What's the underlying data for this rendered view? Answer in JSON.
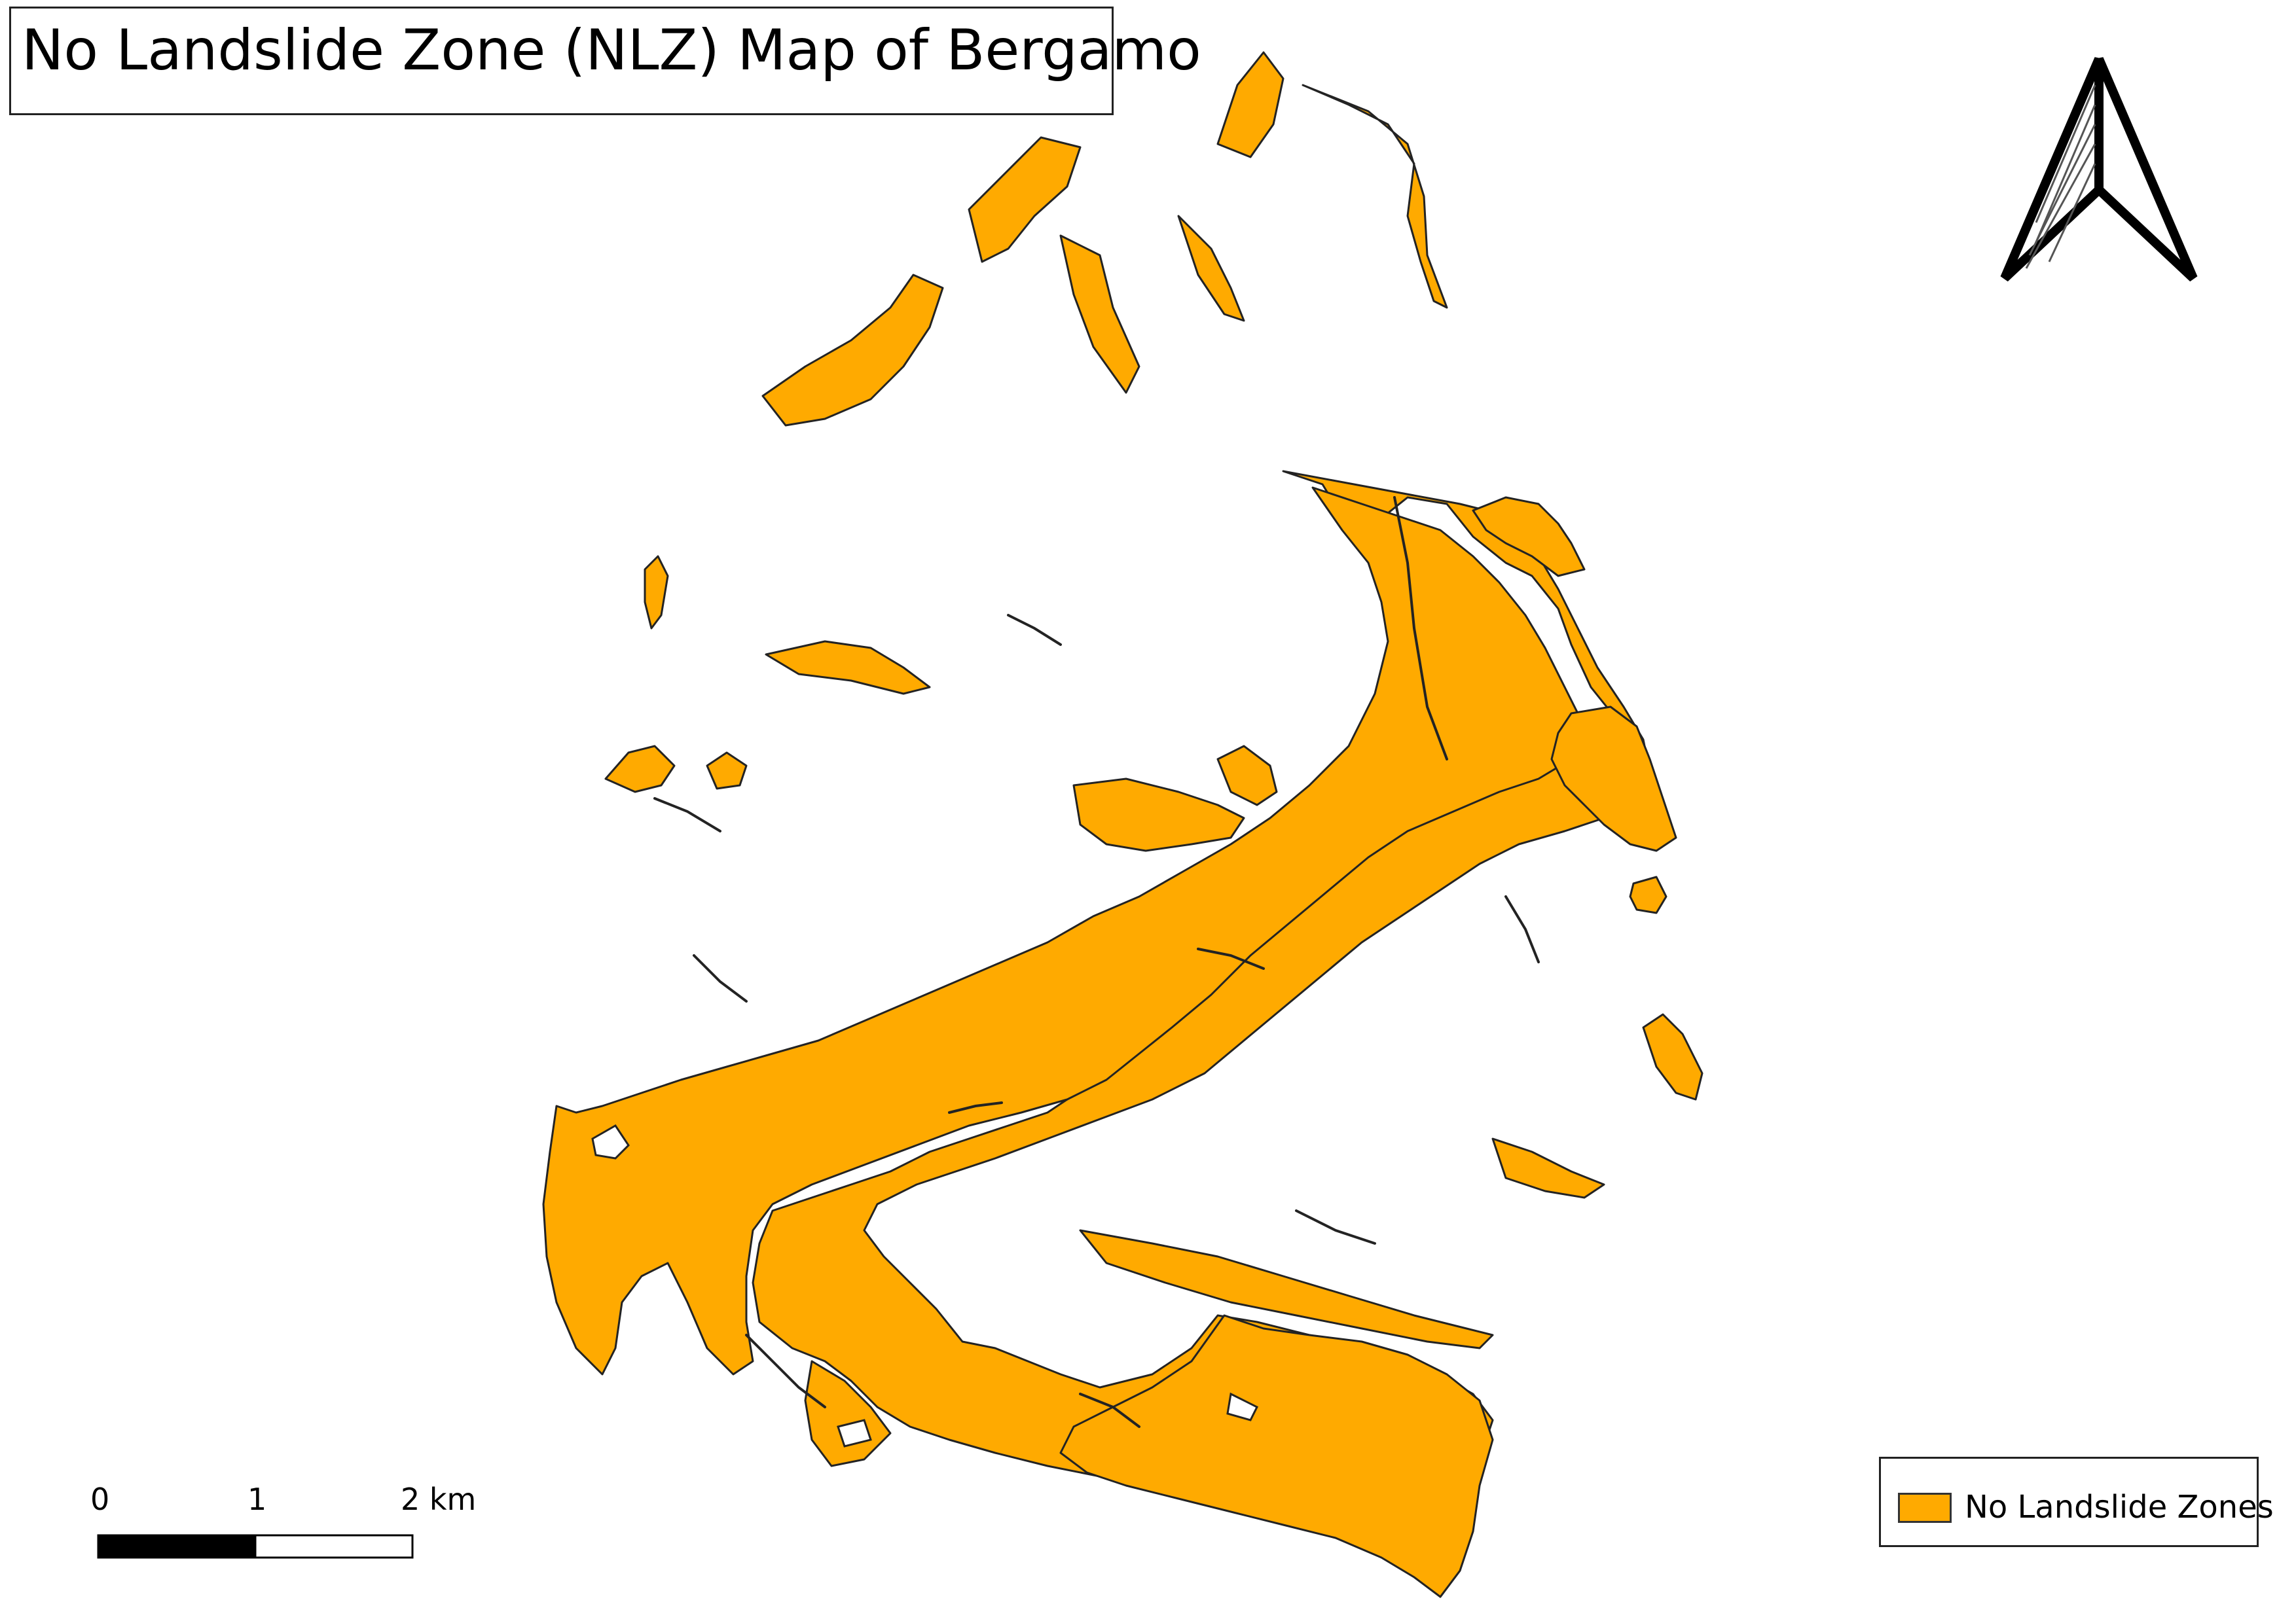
{
  "title": "No Landslide Zone (NLZ) Map of Bergamo",
  "legend": {
    "label": "No Landslide Zones"
  },
  "scale_bar": {
    "labels": [
      "0",
      "1",
      "2 km"
    ]
  },
  "north_arrow": {
    "icon": "north-arrow-icon"
  },
  "colors": {
    "zone_fill": "#FFAA00",
    "outline": "#232323",
    "background": "#FFFFFF"
  }
}
